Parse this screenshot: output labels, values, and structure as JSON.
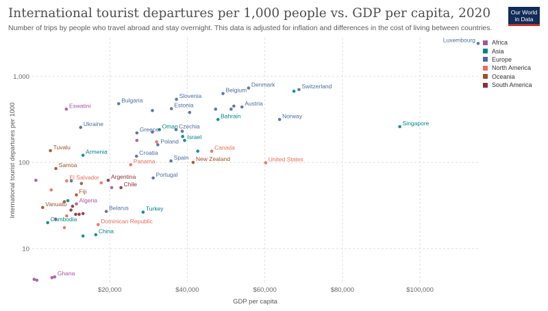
{
  "header": {
    "title": "International tourist departures per 1,000 people vs. GDP per capita, 2020",
    "subtitle": "Number of trips by people who travel abroad and stay overnight. This data is adjusted for inflation and differences in the cost of living between countries.",
    "logo_line1": "Our World",
    "logo_line2": "in Data"
  },
  "colors": {
    "Africa": "#a2559c",
    "Asia": "#00847e",
    "Europe": "#4c6a9c",
    "North America": "#e56e5a",
    "Oceania": "#9a5129",
    "South America": "#883039"
  },
  "legend": [
    "Africa",
    "Asia",
    "Europe",
    "North America",
    "Oceania",
    "South America"
  ],
  "chart_data": {
    "type": "scatter",
    "title": "International tourist departures per 1,000 people vs. GDP per capita, 2020",
    "xlabel": "GDP per capita",
    "ylabel": "International tourist departures per 1000",
    "x_ticks": [
      "$20,000",
      "$40,000",
      "$60,000",
      "$80,000",
      "$100,000"
    ],
    "x_tick_values": [
      20000,
      40000,
      60000,
      80000,
      100000
    ],
    "y_ticks": [
      "10",
      "100",
      "1,000"
    ],
    "y_tick_values": [
      10,
      100,
      1000
    ],
    "xlim": [
      0,
      115000
    ],
    "ylim": [
      4,
      2800
    ],
    "y_scale": "log",
    "grid": true,
    "legend_position": "right",
    "points": [
      {
        "label": "Luxembourg",
        "x": 115000,
        "y": 2400,
        "region": "Europe"
      },
      {
        "label": "Denmark",
        "x": 55800,
        "y": 730,
        "region": "Europe"
      },
      {
        "label": "Switzerland",
        "x": 68800,
        "y": 700,
        "region": "Europe"
      },
      {
        "label": "",
        "x": 67500,
        "y": 670,
        "region": "Asia"
      },
      {
        "label": "Belgium",
        "x": 49200,
        "y": 630,
        "region": "Europe"
      },
      {
        "label": "Slovenia",
        "x": 37200,
        "y": 540,
        "region": "Europe"
      },
      {
        "label": "Bulgaria",
        "x": 22300,
        "y": 480,
        "region": "Europe"
      },
      {
        "label": "Austria",
        "x": 54100,
        "y": 440,
        "region": "Europe"
      },
      {
        "label": "",
        "x": 52000,
        "y": 450,
        "region": "Europe"
      },
      {
        "label": "",
        "x": 51300,
        "y": 415,
        "region": "Europe"
      },
      {
        "label": "",
        "x": 47300,
        "y": 415,
        "region": "Europe"
      },
      {
        "label": "Estonia",
        "x": 35900,
        "y": 420,
        "region": "Europe"
      },
      {
        "label": "",
        "x": 31000,
        "y": 400,
        "region": "Europe"
      },
      {
        "label": "",
        "x": 40600,
        "y": 380,
        "region": "Europe"
      },
      {
        "label": "Eswatini",
        "x": 8800,
        "y": 415,
        "region": "Africa"
      },
      {
        "label": "Bahrain",
        "x": 47900,
        "y": 315,
        "region": "Asia"
      },
      {
        "label": "Norway",
        "x": 63800,
        "y": 315,
        "region": "Europe"
      },
      {
        "label": "Singapore",
        "x": 94800,
        "y": 260,
        "region": "Asia"
      },
      {
        "label": "Ukraine",
        "x": 12500,
        "y": 255,
        "region": "Europe"
      },
      {
        "label": "Oman",
        "x": 32800,
        "y": 240,
        "region": "Asia"
      },
      {
        "label": "Czechia",
        "x": 37100,
        "y": 240,
        "region": "Europe"
      },
      {
        "label": "Greece",
        "x": 27000,
        "y": 220,
        "region": "Europe"
      },
      {
        "label": "",
        "x": 31000,
        "y": 225,
        "region": "Europe"
      },
      {
        "label": "",
        "x": 38700,
        "y": 230,
        "region": "Europe"
      },
      {
        "label": "",
        "x": 38800,
        "y": 200,
        "region": "Asia"
      },
      {
        "label": "Israel",
        "x": 39300,
        "y": 180,
        "region": "Asia"
      },
      {
        "label": "",
        "x": 27000,
        "y": 180,
        "region": "Africa"
      },
      {
        "label": "Poland",
        "x": 32400,
        "y": 160,
        "region": "Europe"
      },
      {
        "label": "",
        "x": 32100,
        "y": 173,
        "region": "North America"
      },
      {
        "label": "Tuvalu",
        "x": 4700,
        "y": 137,
        "region": "Oceania"
      },
      {
        "label": "Canada",
        "x": 46300,
        "y": 135,
        "region": "North America"
      },
      {
        "label": "",
        "x": 42700,
        "y": 135,
        "region": "Asia"
      },
      {
        "label": "Armenia",
        "x": 13100,
        "y": 121,
        "region": "Asia"
      },
      {
        "label": "Croatia",
        "x": 26900,
        "y": 118,
        "region": "Europe"
      },
      {
        "label": "Spain",
        "x": 35800,
        "y": 104,
        "region": "Europe"
      },
      {
        "label": "New Zealand",
        "x": 41500,
        "y": 100,
        "region": "Oceania"
      },
      {
        "label": "United States",
        "x": 60200,
        "y": 99,
        "region": "North America"
      },
      {
        "label": "Panama",
        "x": 25400,
        "y": 94,
        "region": "North America"
      },
      {
        "label": "Samoa",
        "x": 6100,
        "y": 85,
        "region": "Oceania"
      },
      {
        "label": "Portugal",
        "x": 31200,
        "y": 66,
        "region": "Europe"
      },
      {
        "label": "Argentina",
        "x": 19600,
        "y": 62,
        "region": "South America"
      },
      {
        "label": "El Salvador",
        "x": 8900,
        "y": 61,
        "region": "North America"
      },
      {
        "label": "",
        "x": 950,
        "y": 62,
        "region": "Africa"
      },
      {
        "label": "",
        "x": 10100,
        "y": 61,
        "region": "Europe"
      },
      {
        "label": "",
        "x": 12700,
        "y": 57,
        "region": "Oceania"
      },
      {
        "label": "",
        "x": 17800,
        "y": 58,
        "region": "North America"
      },
      {
        "label": "Chile",
        "x": 22900,
        "y": 51,
        "region": "South America"
      },
      {
        "label": "",
        "x": 20500,
        "y": 51,
        "region": "Africa"
      },
      {
        "label": "",
        "x": 4900,
        "y": 48,
        "region": "North America"
      },
      {
        "label": "Fiji",
        "x": 11400,
        "y": 42,
        "region": "Oceania"
      },
      {
        "label": "Algeria",
        "x": 11400,
        "y": 33,
        "region": "Africa"
      },
      {
        "label": "",
        "x": 8300,
        "y": 35,
        "region": "Oceania"
      },
      {
        "label": "",
        "x": 9200,
        "y": 36,
        "region": "Asia"
      },
      {
        "label": "",
        "x": 10400,
        "y": 31,
        "region": "South America"
      },
      {
        "label": "Vanuatu",
        "x": 2700,
        "y": 30,
        "region": "Oceania"
      },
      {
        "label": "",
        "x": 10000,
        "y": 28,
        "region": "South America"
      },
      {
        "label": "Belarus",
        "x": 19100,
        "y": 27,
        "region": "Europe"
      },
      {
        "label": "Turkey",
        "x": 28600,
        "y": 26.5,
        "region": "Asia"
      },
      {
        "label": "",
        "x": 11200,
        "y": 25,
        "region": "South America"
      },
      {
        "label": "",
        "x": 12100,
        "y": 25,
        "region": "South America"
      },
      {
        "label": "",
        "x": 13100,
        "y": 25.5,
        "region": "South America"
      },
      {
        "label": "Cambodia",
        "x": 4000,
        "y": 20,
        "region": "Asia"
      },
      {
        "label": "",
        "x": 8900,
        "y": 24,
        "region": "North America"
      },
      {
        "label": "",
        "x": 6000,
        "y": 22,
        "region": "Africa"
      },
      {
        "label": "Dominican Republic",
        "x": 17000,
        "y": 19,
        "region": "North America"
      },
      {
        "label": "",
        "x": 8300,
        "y": 17.5,
        "region": "North America"
      },
      {
        "label": "China",
        "x": 16400,
        "y": 14.5,
        "region": "Asia"
      },
      {
        "label": "",
        "x": 13100,
        "y": 14,
        "region": "Asia"
      },
      {
        "label": "Ghana",
        "x": 5800,
        "y": 4.7,
        "region": "Africa"
      },
      {
        "label": "",
        "x": 5100,
        "y": 4.6,
        "region": "Africa"
      },
      {
        "label": "",
        "x": 500,
        "y": 4.4,
        "region": "Africa"
      },
      {
        "label": "",
        "x": 1200,
        "y": 4.3,
        "region": "Africa"
      }
    ]
  }
}
